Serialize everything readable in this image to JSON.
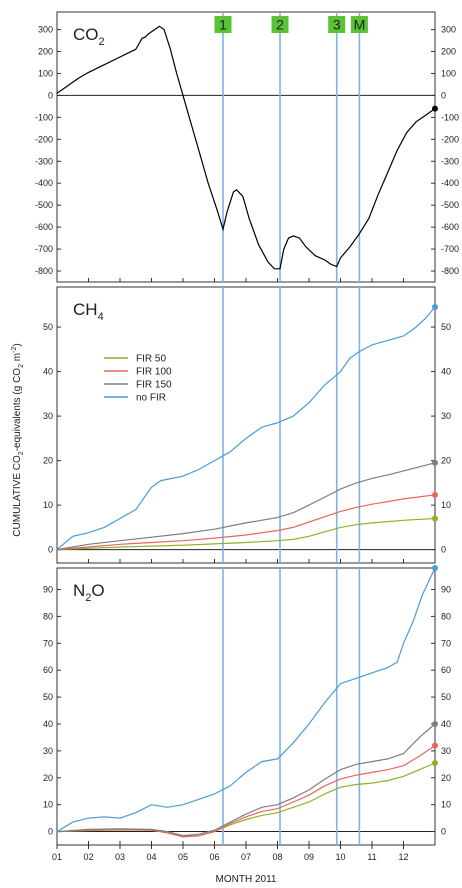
{
  "chart_data": {
    "type": "line",
    "xlabel": "MONTH 2011",
    "ylabel_parts": {
      "a": "CUMULATIVE CO",
      "a_sub": "2",
      "b": "-equivalents (g CO",
      "b_sub": "2",
      "c": " m",
      "c_sup": "-2",
      "d": ")"
    },
    "months": [
      "01",
      "02",
      "03",
      "04",
      "05",
      "06",
      "07",
      "08",
      "09",
      "10",
      "11",
      "12"
    ],
    "x_domain": [
      1,
      13
    ],
    "events": [
      {
        "label": "1",
        "x": 6.27
      },
      {
        "label": "2",
        "x": 8.08
      },
      {
        "label": "3",
        "x": 9.88
      },
      {
        "label": "M",
        "x": 10.6
      }
    ],
    "event_color": "#5bc236",
    "event_line_color": "#7fb2e5",
    "panels": [
      {
        "id": "co2",
        "title_main": "CO",
        "title_sub": "2",
        "ylim": [
          -850,
          380
        ],
        "yticks": [
          300,
          200,
          100,
          0,
          -100,
          -200,
          -300,
          -400,
          -500,
          -600,
          -700,
          -800
        ],
        "series": [
          {
            "name": "",
            "color": "#000000",
            "endpoint": true,
            "points": [
              [
                1,
                10
              ],
              [
                1.3,
                40
              ],
              [
                1.7,
                80
              ],
              [
                2,
                105
              ],
              [
                2.5,
                140
              ],
              [
                3,
                175
              ],
              [
                3.5,
                210
              ],
              [
                3.7,
                260
              ],
              [
                3.8,
                265
              ],
              [
                3.9,
                280
              ],
              [
                4.1,
                300
              ],
              [
                4.25,
                315
              ],
              [
                4.4,
                300
              ],
              [
                4.6,
                210
              ],
              [
                4.8,
                100
              ],
              [
                5,
                0
              ],
              [
                5.2,
                -100
              ],
              [
                5.5,
                -250
              ],
              [
                5.8,
                -400
              ],
              [
                6.1,
                -530
              ],
              [
                6.27,
                -610
              ],
              [
                6.4,
                -530
              ],
              [
                6.6,
                -440
              ],
              [
                6.7,
                -430
              ],
              [
                6.9,
                -460
              ],
              [
                7.1,
                -560
              ],
              [
                7.4,
                -680
              ],
              [
                7.7,
                -760
              ],
              [
                7.9,
                -790
              ],
              [
                8.08,
                -790
              ],
              [
                8.2,
                -700
              ],
              [
                8.35,
                -650
              ],
              [
                8.5,
                -640
              ],
              [
                8.7,
                -650
              ],
              [
                8.9,
                -690
              ],
              [
                9.2,
                -730
              ],
              [
                9.5,
                -750
              ],
              [
                9.7,
                -770
              ],
              [
                9.88,
                -780
              ],
              [
                10,
                -740
              ],
              [
                10.3,
                -690
              ],
              [
                10.6,
                -630
              ],
              [
                10.9,
                -560
              ],
              [
                11.2,
                -450
              ],
              [
                11.5,
                -350
              ],
              [
                11.8,
                -250
              ],
              [
                12.1,
                -170
              ],
              [
                12.4,
                -120
              ],
              [
                12.7,
                -90
              ],
              [
                13,
                -60
              ]
            ]
          }
        ]
      },
      {
        "id": "ch4",
        "title_main": "CH",
        "title_sub": "4",
        "ylim": [
          -3,
          59
        ],
        "yticks": [
          50,
          40,
          30,
          20,
          10,
          0
        ],
        "legend": true,
        "series": [
          {
            "name": "FIR 50",
            "color": "#8bb32a",
            "endpoint": true,
            "points": [
              [
                1,
                0
              ],
              [
                2,
                0.3
              ],
              [
                3,
                0.6
              ],
              [
                4,
                0.8
              ],
              [
                5,
                1.0
              ],
              [
                6,
                1.3
              ],
              [
                7,
                1.6
              ],
              [
                8,
                2.0
              ],
              [
                8.5,
                2.3
              ],
              [
                9,
                3.0
              ],
              [
                9.5,
                4.0
              ],
              [
                10,
                5.0
              ],
              [
                10.5,
                5.6
              ],
              [
                11,
                6.0
              ],
              [
                11.5,
                6.3
              ],
              [
                12,
                6.6
              ],
              [
                13,
                7.0
              ]
            ]
          },
          {
            "name": "FIR 100",
            "color": "#e8675d",
            "endpoint": true,
            "points": [
              [
                1,
                0
              ],
              [
                2,
                0.6
              ],
              [
                3,
                1.2
              ],
              [
                4,
                1.6
              ],
              [
                5,
                2.0
              ],
              [
                6,
                2.6
              ],
              [
                7,
                3.3
              ],
              [
                8,
                4.3
              ],
              [
                8.5,
                5.0
              ],
              [
                9,
                6.2
              ],
              [
                9.5,
                7.4
              ],
              [
                10,
                8.6
              ],
              [
                10.5,
                9.5
              ],
              [
                11,
                10.2
              ],
              [
                11.5,
                10.8
              ],
              [
                12,
                11.4
              ],
              [
                13,
                12.3
              ]
            ]
          },
          {
            "name": "FIR 150",
            "color": "#7e7e7e",
            "endpoint": true,
            "points": [
              [
                1,
                0
              ],
              [
                2,
                1.2
              ],
              [
                3,
                2.0
              ],
              [
                4,
                2.8
              ],
              [
                5,
                3.6
              ],
              [
                6,
                4.6
              ],
              [
                7,
                6.0
              ],
              [
                8,
                7.2
              ],
              [
                8.5,
                8.3
              ],
              [
                9,
                10.0
              ],
              [
                9.5,
                11.8
              ],
              [
                10,
                13.6
              ],
              [
                10.5,
                15.0
              ],
              [
                11,
                16.0
              ],
              [
                11.5,
                16.8
              ],
              [
                12,
                17.7
              ],
              [
                13,
                19.5
              ]
            ]
          },
          {
            "name": "no FIR",
            "color": "#4a9bd8",
            "endpoint": true,
            "points": [
              [
                1,
                0
              ],
              [
                1.5,
                3
              ],
              [
                2,
                3.8
              ],
              [
                2.5,
                5.0
              ],
              [
                3,
                7.0
              ],
              [
                3.5,
                9.0
              ],
              [
                3.8,
                12
              ],
              [
                4,
                14
              ],
              [
                4.3,
                15.5
              ],
              [
                5,
                16.5
              ],
              [
                5.5,
                18
              ],
              [
                6,
                20
              ],
              [
                6.5,
                22
              ],
              [
                7,
                25
              ],
              [
                7.5,
                27.5
              ],
              [
                8,
                28.5
              ],
              [
                8.5,
                30
              ],
              [
                9,
                33
              ],
              [
                9.5,
                37
              ],
              [
                10,
                40
              ],
              [
                10.3,
                43
              ],
              [
                10.6,
                44.5
              ],
              [
                11,
                46
              ],
              [
                11.5,
                47
              ],
              [
                12,
                48
              ],
              [
                12.4,
                50
              ],
              [
                12.7,
                52
              ],
              [
                13,
                54.5
              ]
            ]
          }
        ]
      },
      {
        "id": "n2o",
        "title_main": "N",
        "title_sub": "2",
        "title_tail": "O",
        "ylim": [
          -5,
          98
        ],
        "yticks": [
          90,
          80,
          70,
          60,
          50,
          40,
          30,
          20,
          10,
          0
        ],
        "series": [
          {
            "name": "FIR 50",
            "color": "#8bb32a",
            "endpoint": true,
            "points": [
              [
                1,
                0
              ],
              [
                2,
                0.4
              ],
              [
                3,
                0.6
              ],
              [
                4,
                0.5
              ],
              [
                4.5,
                -0.5
              ],
              [
                5,
                -1.8
              ],
              [
                5.5,
                -1.5
              ],
              [
                6,
                0
              ],
              [
                6.5,
                2.5
              ],
              [
                7,
                4.5
              ],
              [
                7.5,
                6.0
              ],
              [
                8,
                7.0
              ],
              [
                8.5,
                9.0
              ],
              [
                9,
                11.0
              ],
              [
                9.5,
                14.0
              ],
              [
                10,
                16.5
              ],
              [
                10.5,
                17.5
              ],
              [
                11,
                18.0
              ],
              [
                11.5,
                19.0
              ],
              [
                12,
                20.5
              ],
              [
                12.5,
                23.0
              ],
              [
                13,
                25.5
              ]
            ]
          },
          {
            "name": "FIR 100",
            "color": "#e8675d",
            "endpoint": true,
            "points": [
              [
                1,
                0
              ],
              [
                2,
                0.5
              ],
              [
                3,
                0.7
              ],
              [
                4,
                0.5
              ],
              [
                4.5,
                -0.5
              ],
              [
                5,
                -2.0
              ],
              [
                5.5,
                -1.6
              ],
              [
                6,
                0
              ],
              [
                6.5,
                3.0
              ],
              [
                7,
                5.5
              ],
              [
                7.5,
                7.5
              ],
              [
                8,
                8.5
              ],
              [
                8.5,
                11
              ],
              [
                9,
                13.5
              ],
              [
                9.5,
                17
              ],
              [
                10,
                19.5
              ],
              [
                10.5,
                21
              ],
              [
                11,
                22
              ],
              [
                11.5,
                23
              ],
              [
                12,
                24.5
              ],
              [
                12.5,
                28
              ],
              [
                13,
                32
              ]
            ]
          },
          {
            "name": "FIR 150",
            "color": "#7e7e7e",
            "endpoint": true,
            "points": [
              [
                1,
                0
              ],
              [
                2,
                0.8
              ],
              [
                3,
                1.0
              ],
              [
                4,
                0.8
              ],
              [
                4.5,
                0
              ],
              [
                5,
                -1.5
              ],
              [
                5.5,
                -1.0
              ],
              [
                6,
                0.5
              ],
              [
                6.5,
                3.5
              ],
              [
                7,
                6.5
              ],
              [
                7.5,
                9.0
              ],
              [
                8,
                10.0
              ],
              [
                8.5,
                12.5
              ],
              [
                9,
                15.5
              ],
              [
                9.5,
                19.5
              ],
              [
                10,
                23
              ],
              [
                10.5,
                25
              ],
              [
                11,
                26
              ],
              [
                11.5,
                27
              ],
              [
                12,
                29
              ],
              [
                12.5,
                35
              ],
              [
                13,
                40
              ]
            ]
          },
          {
            "name": "no FIR",
            "color": "#4a9bd8",
            "endpoint": true,
            "points": [
              [
                1,
                0
              ],
              [
                1.5,
                3.5
              ],
              [
                2,
                5
              ],
              [
                2.5,
                5.5
              ],
              [
                3,
                5
              ],
              [
                3.5,
                7
              ],
              [
                4,
                10
              ],
              [
                4.5,
                9
              ],
              [
                5,
                10
              ],
              [
                5.5,
                12
              ],
              [
                6,
                14
              ],
              [
                6.5,
                17
              ],
              [
                7,
                22
              ],
              [
                7.5,
                26
              ],
              [
                8,
                27
              ],
              [
                8.5,
                33
              ],
              [
                9,
                40
              ],
              [
                9.5,
                48
              ],
              [
                10,
                55
              ],
              [
                10.5,
                57
              ],
              [
                11,
                59
              ],
              [
                11.5,
                61
              ],
              [
                11.8,
                63
              ],
              [
                12,
                70
              ],
              [
                12.3,
                78
              ],
              [
                12.6,
                88
              ],
              [
                13,
                98
              ]
            ]
          }
        ]
      }
    ]
  }
}
